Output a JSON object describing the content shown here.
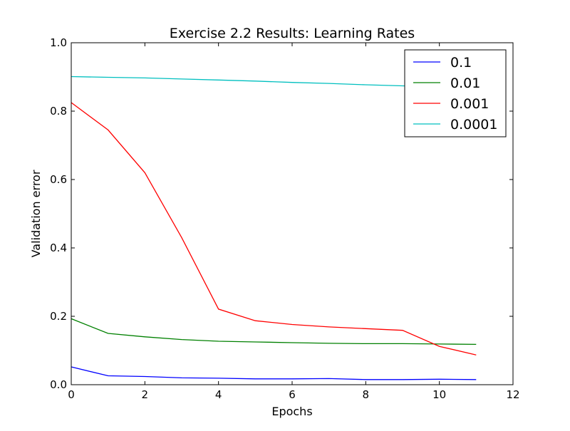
{
  "chart_data": {
    "type": "line",
    "title": "Exercise 2.2 Results: Learning Rates",
    "xlabel": "Epochs",
    "ylabel": "Validation error",
    "xlim": [
      0,
      12
    ],
    "ylim": [
      0.0,
      1.0
    ],
    "xticks": [
      "0",
      "2",
      "4",
      "6",
      "8",
      "10",
      "12"
    ],
    "yticks": [
      "0.0",
      "0.2",
      "0.4",
      "0.6",
      "0.8",
      "1.0"
    ],
    "grid": false,
    "legend_position": "top-right",
    "x": [
      0,
      1,
      2,
      3,
      4,
      5,
      6,
      7,
      8,
      9,
      10,
      11
    ],
    "series": [
      {
        "name": "0.1",
        "color": "#0000ff",
        "values": [
          0.052,
          0.026,
          0.024,
          0.02,
          0.019,
          0.017,
          0.017,
          0.018,
          0.015,
          0.015,
          0.016,
          0.015
        ]
      },
      {
        "name": "0.01",
        "color": "#008000",
        "values": [
          0.193,
          0.15,
          0.14,
          0.132,
          0.127,
          0.125,
          0.123,
          0.121,
          0.12,
          0.12,
          0.119,
          0.118
        ]
      },
      {
        "name": "0.001",
        "color": "#ff0000",
        "values": [
          0.825,
          0.745,
          0.62,
          0.43,
          0.221,
          0.187,
          0.176,
          0.169,
          0.164,
          0.159,
          0.112,
          0.087
        ]
      },
      {
        "name": "0.0001",
        "color": "#00bfbf",
        "values": [
          0.901,
          0.899,
          0.897,
          0.894,
          0.891,
          0.888,
          0.884,
          0.881,
          0.877,
          0.874,
          0.871,
          0.868
        ]
      }
    ]
  }
}
